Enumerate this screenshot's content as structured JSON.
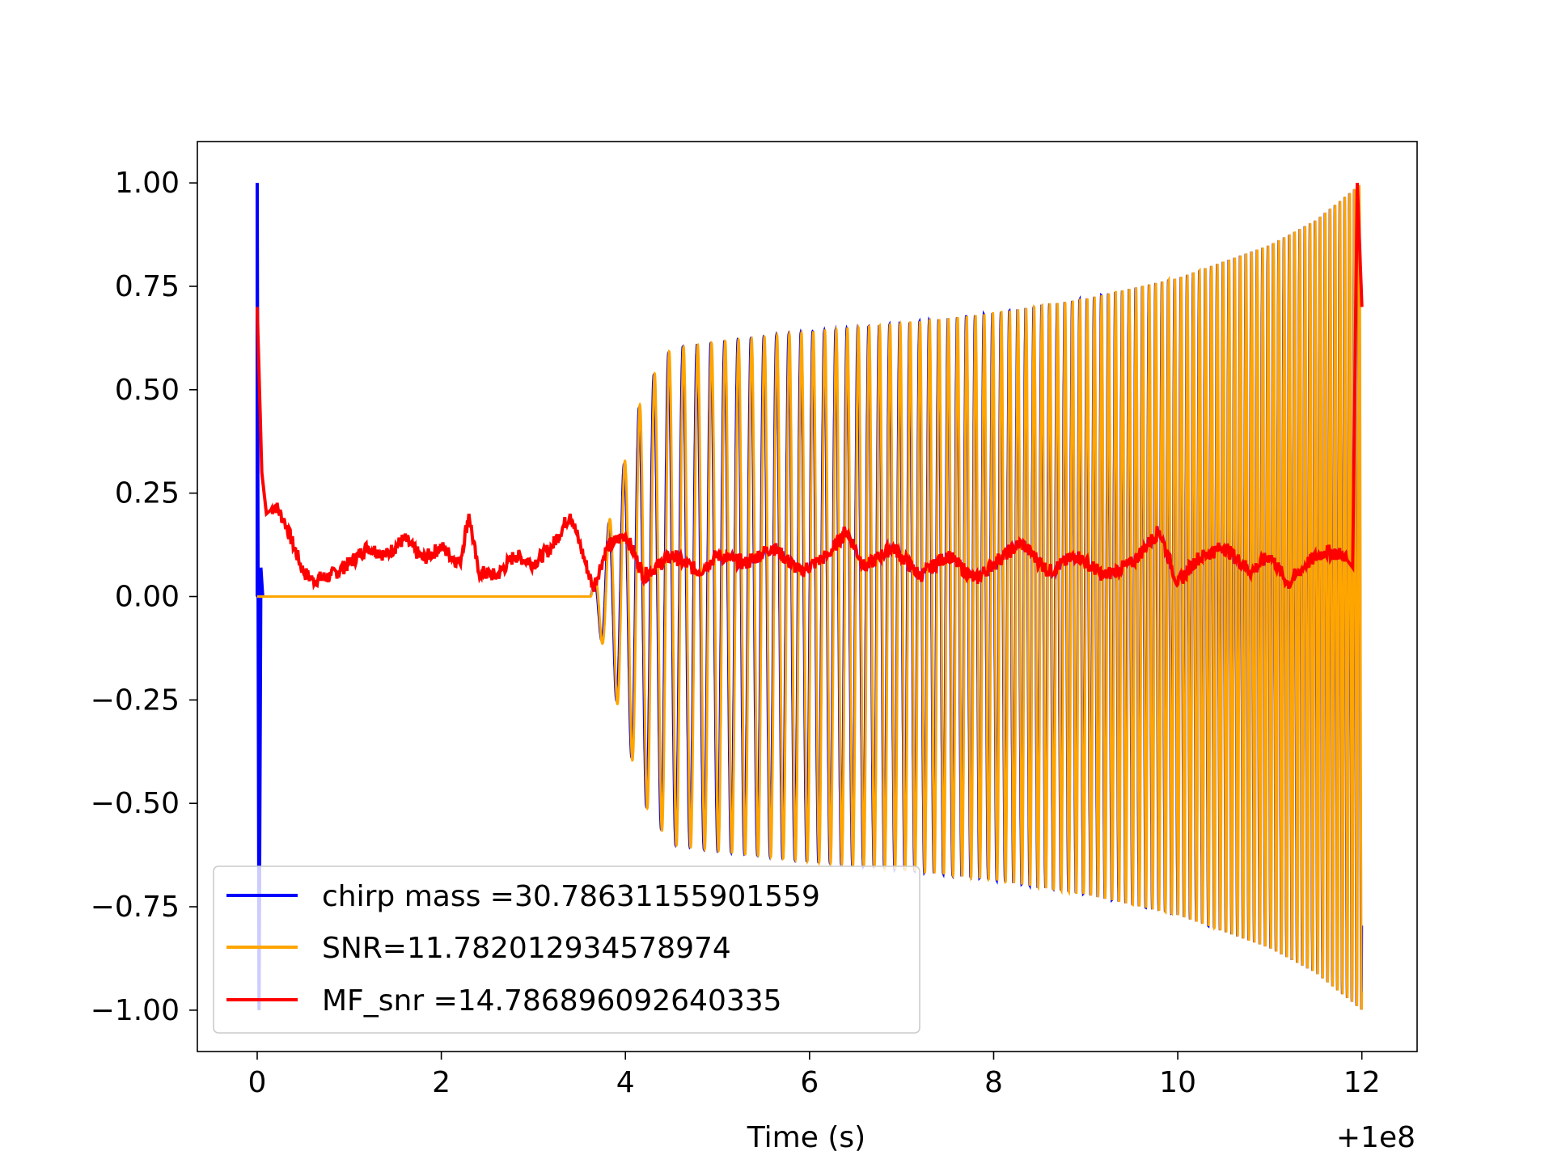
{
  "chart_data": {
    "type": "line",
    "title": "",
    "xlabel": "Time (s)",
    "ylabel": "",
    "x_offset_label": "+1e8",
    "xlim": [
      -0.65,
      12.6
    ],
    "ylim": [
      -1.1,
      1.1
    ],
    "x_ticks": [
      0,
      2,
      4,
      6,
      8,
      10,
      12
    ],
    "x_tick_labels": [
      "0",
      "2",
      "4",
      "6",
      "8",
      "10",
      "12"
    ],
    "y_ticks": [
      1.0,
      0.75,
      0.5,
      0.25,
      0.0,
      -0.25,
      -0.5,
      -0.75,
      -1.0
    ],
    "y_tick_labels": [
      "1.00",
      "0.75",
      "0.50",
      "0.25",
      "0.00",
      "−0.25",
      "−0.50",
      "−0.75",
      "−1.00"
    ],
    "grid": false,
    "legend_position": "lower-left",
    "series": [
      {
        "name": "chirp mass =30.78631155901559",
        "color": "#0000ff",
        "kind": "chirp-waveform",
        "points_x": [
          0.0,
          3.62,
          3.9,
          4.2,
          4.5,
          5.0,
          6.0,
          7.0,
          8.0,
          9.0,
          10.0,
          11.0,
          11.5,
          12.0
        ],
        "points_y": [
          0.0,
          0.0,
          0.25,
          0.5,
          0.6,
          0.615,
          0.64,
          0.66,
          0.685,
          0.72,
          0.77,
          0.85,
          0.91,
          1.0
        ],
        "spike_at_start": {
          "x": 0.0,
          "ymax": 1.0,
          "ymin": -1.0
        }
      },
      {
        "name": "SNR=11.782012934578974",
        "color": "#ffa500",
        "kind": "chirp-waveform",
        "points_x": [
          0.0,
          3.62,
          3.9,
          4.2,
          4.5,
          5.0,
          6.0,
          7.0,
          8.0,
          9.0,
          10.0,
          11.0,
          11.5,
          12.0
        ],
        "points_y": [
          0.0,
          0.0,
          0.25,
          0.5,
          0.6,
          0.615,
          0.64,
          0.66,
          0.685,
          0.72,
          0.77,
          0.85,
          0.91,
          1.0
        ]
      },
      {
        "name": "MF_snr =14.786896092640335",
        "color": "#ff0000",
        "kind": "noisy-line",
        "points_x": [
          0.0,
          0.05,
          0.1,
          0.2,
          0.3,
          0.5,
          0.6,
          0.8,
          1.0,
          1.2,
          1.4,
          1.6,
          1.8,
          2.0,
          2.2,
          2.3,
          2.4,
          2.6,
          2.8,
          3.0,
          3.2,
          3.4,
          3.5,
          3.65,
          3.8,
          4.0,
          4.2,
          4.5,
          4.8,
          5.0,
          5.3,
          5.6,
          5.9,
          6.2,
          6.4,
          6.6,
          6.9,
          7.2,
          7.5,
          7.8,
          8.0,
          8.3,
          8.6,
          8.9,
          9.2,
          9.5,
          9.8,
          10.0,
          10.2,
          10.5,
          10.8,
          11.0,
          11.2,
          11.4,
          11.6,
          11.8,
          11.9,
          11.95,
          12.0
        ],
        "points_y": [
          0.7,
          0.3,
          0.2,
          0.22,
          0.18,
          0.06,
          0.04,
          0.05,
          0.08,
          0.12,
          0.1,
          0.14,
          0.09,
          0.12,
          0.08,
          0.2,
          0.06,
          0.05,
          0.1,
          0.08,
          0.12,
          0.2,
          0.13,
          0.02,
          0.12,
          0.15,
          0.05,
          0.1,
          0.06,
          0.1,
          0.08,
          0.12,
          0.06,
          0.1,
          0.16,
          0.07,
          0.12,
          0.05,
          0.1,
          0.04,
          0.08,
          0.13,
          0.06,
          0.1,
          0.05,
          0.08,
          0.16,
          0.03,
          0.09,
          0.12,
          0.06,
          0.1,
          0.03,
          0.08,
          0.11,
          0.1,
          0.07,
          1.0,
          0.7
        ]
      }
    ]
  }
}
